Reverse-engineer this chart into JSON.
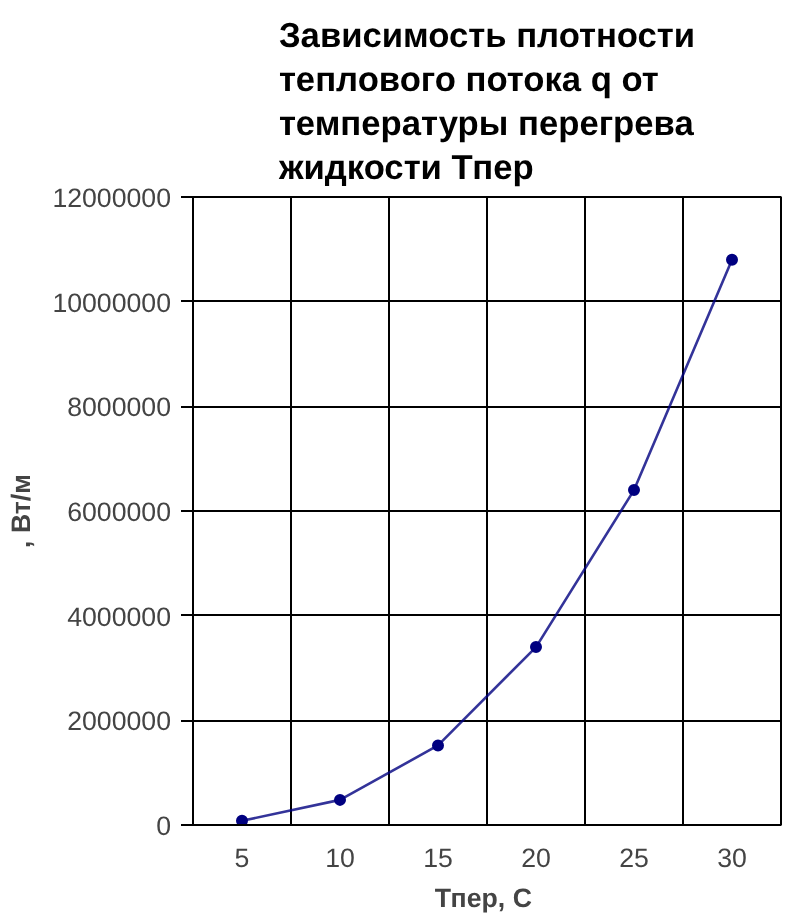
{
  "chart_data": {
    "type": "line",
    "title": "Зависимость плотности теплового потока q от температуры перегрева жидкости Тпер",
    "xlabel": "Тпер,  С",
    "ylabel": ", Вт/м",
    "categories": [
      "5",
      "10",
      "15",
      "20",
      "25",
      "30"
    ],
    "series": [
      {
        "color": "#000080",
        "values": [
          80000,
          480000,
          1520000,
          3400000,
          6400000,
          10800000
        ]
      }
    ],
    "ylim": [
      0,
      12000000
    ],
    "yticks": [
      0,
      2000000,
      4000000,
      6000000,
      8000000,
      10000000,
      12000000
    ],
    "grid": true,
    "marker": "circle",
    "line_style": "solid"
  }
}
